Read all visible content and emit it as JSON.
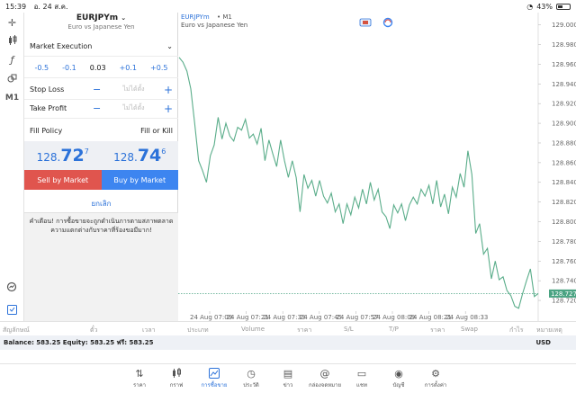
{
  "status": {
    "time": "15:39",
    "date": "อ. 24 ส.ค.",
    "battery": "43%",
    "battery_level": 0.43
  },
  "toolbar": {
    "items": [
      "crosshair-icon",
      "candles-icon",
      "function-icon",
      "objects-icon"
    ],
    "timeframe": "M1"
  },
  "order": {
    "symbol": "EURJPYm",
    "symbol_desc": "Euro vs Japanese Yen",
    "execution": "Market Execution",
    "volume_steps": [
      "-0.5",
      "-0.1",
      "0.03",
      "+0.1",
      "+0.5"
    ],
    "stop_loss": {
      "label": "Stop Loss",
      "minus": "−",
      "placeholder": "ไม่ได้ตั้ง",
      "plus": "+"
    },
    "take_profit": {
      "label": "Take Profit",
      "minus": "−",
      "placeholder": "ไม่ได้ตั้ง",
      "plus": "+"
    },
    "fill_policy": {
      "label": "Fill Policy",
      "value": "Fill or Kill"
    },
    "bid": {
      "main": "128.",
      "big": "72",
      "sup": "7"
    },
    "ask": {
      "main": "128.",
      "big": "74",
      "sup": "6"
    },
    "sell_label": "Sell by Market",
    "buy_label": "Buy by Market",
    "cancel_label": "ยกเลิก",
    "warning": "คำเตือน! การซื้อขายจะถูกดำเนินการตามสภาพตลาด ความแตกต่างกับราคาที่ร้องขอมีมาก!"
  },
  "chart_header": {
    "symbol": "EURJPYm",
    "timeframe": "M1",
    "desc": "Euro vs Japanese Yen"
  },
  "chart_data": {
    "type": "line",
    "price_ticks": [
      "129.000",
      "128.980",
      "128.960",
      "128.940",
      "128.920",
      "128.900",
      "128.880",
      "128.860",
      "128.840",
      "128.820",
      "128.800",
      "128.780",
      "128.760",
      "128.740",
      "128.720"
    ],
    "current_price": "128.727",
    "ylim": [
      128.71,
      129.007
    ],
    "time_ticks": [
      "24 Aug 07:09",
      "24 Aug 07:21",
      "24 Aug 07:33",
      "24 Aug 07:45",
      "24 Aug 07:57",
      "24 Aug 08:09",
      "24 Aug 08:21",
      "24 Aug 08:33"
    ],
    "values": [
      128.967,
      128.962,
      128.953,
      128.935,
      128.9,
      128.862,
      128.852,
      128.84,
      128.867,
      128.878,
      128.906,
      128.884,
      128.9,
      128.887,
      128.882,
      128.896,
      128.893,
      128.904,
      128.885,
      128.889,
      128.879,
      128.895,
      128.862,
      128.883,
      128.869,
      128.856,
      128.883,
      128.862,
      128.845,
      128.862,
      128.845,
      128.81,
      128.848,
      128.834,
      128.842,
      128.826,
      128.842,
      128.826,
      128.819,
      128.829,
      128.81,
      128.818,
      128.798,
      128.818,
      128.807,
      128.825,
      128.814,
      128.833,
      128.818,
      128.84,
      128.822,
      128.833,
      128.81,
      128.805,
      128.793,
      128.817,
      128.809,
      128.818,
      128.801,
      128.817,
      128.825,
      128.818,
      128.833,
      128.826,
      128.837,
      128.818,
      128.842,
      128.815,
      128.828,
      128.808,
      128.835,
      128.825,
      128.849,
      128.835,
      128.872,
      128.848,
      128.788,
      128.798,
      128.767,
      128.773,
      128.742,
      128.76,
      128.741,
      128.744,
      128.73,
      128.725,
      128.714,
      128.712,
      128.727,
      128.74,
      128.752,
      128.724,
      128.727
    ]
  },
  "columns": [
    "สัญลักษณ์",
    "ตั๋ว",
    "เวลา",
    "ประเภท",
    "Volume",
    "ราคา",
    "S/L",
    "T/P",
    "ราคา",
    "Swap",
    "กำไร",
    "หมายเหตุ"
  ],
  "balance": {
    "text": "Balance: 583.25 Equity: 583.25 ฟรี: 583.25",
    "currency": "USD"
  },
  "nav": [
    {
      "label": "ราคา",
      "icon": "quotes-icon"
    },
    {
      "label": "กราฟ",
      "icon": "chart-icon"
    },
    {
      "label": "การซื้อขาย",
      "icon": "trade-icon"
    },
    {
      "label": "ประวัติ",
      "icon": "history-icon"
    },
    {
      "label": "ข่าว",
      "icon": "news-icon"
    },
    {
      "label": "กล่องจดหมาย",
      "icon": "mail-icon"
    },
    {
      "label": "แชท",
      "icon": "chat-icon"
    },
    {
      "label": "บัญชี",
      "icon": "account-icon"
    },
    {
      "label": "การตั้งค่า",
      "icon": "settings-icon"
    }
  ],
  "colors": {
    "accent": "#2c72d9",
    "sell": "#e0554e",
    "buy": "#3d85f0",
    "line": "#5aad8a",
    "price_tag": "#4aa382"
  }
}
